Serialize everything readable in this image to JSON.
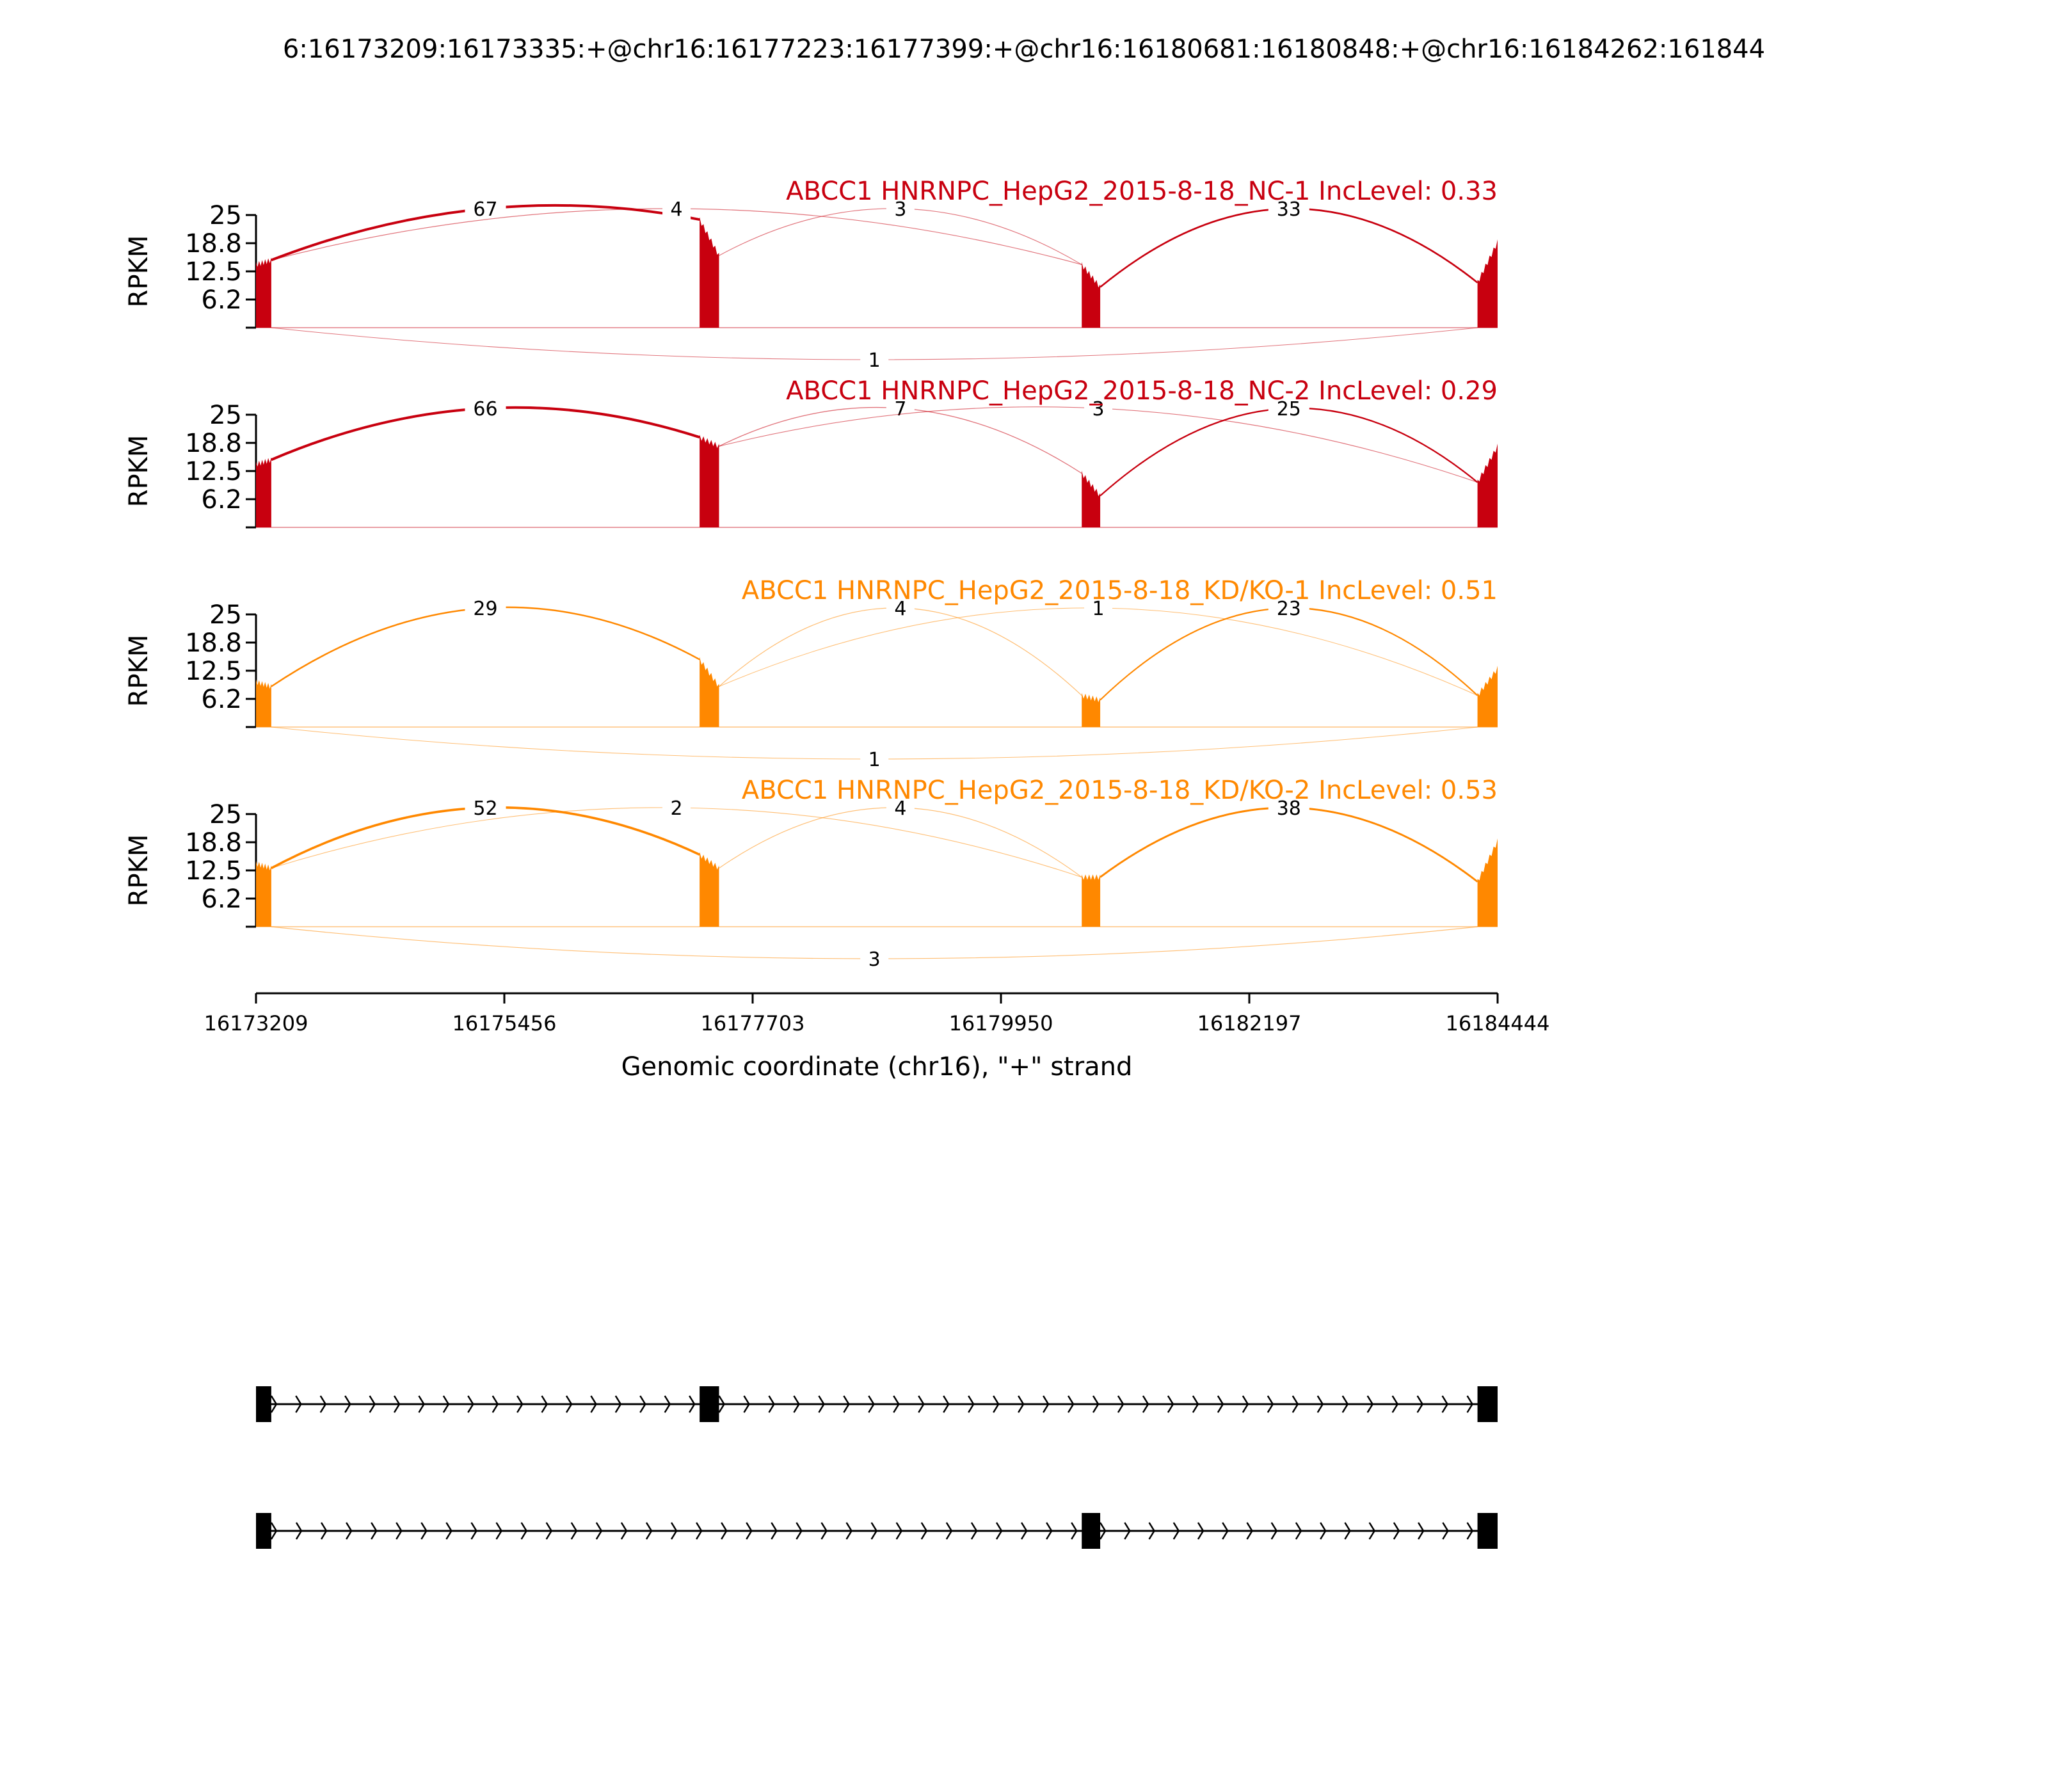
{
  "chart_data": {
    "type": "area",
    "title": "6:16173209:16173335:+@chr16:16177223:16177399:+@chr16:16180681:16180848:+@chr16:16184262:161844",
    "xlabel": "Genomic coordinate (chr16), \"+\" strand",
    "ylabel": "RPKM",
    "xlim": [
      16173209,
      16184444
    ],
    "xticks": [
      "16173209",
      "16175456",
      "16177703",
      "16179950",
      "16182197",
      "16184444"
    ],
    "ylim": [
      0,
      25
    ],
    "yticks": [
      "25",
      "18.8",
      "12.5",
      "6.2"
    ],
    "exons": [
      [
        16173209,
        16173335
      ],
      [
        16177223,
        16177399
      ],
      [
        16180681,
        16180848
      ],
      [
        16184262,
        16184444
      ]
    ],
    "colors": {
      "NC": "#c8000f",
      "KD": "#ff8800",
      "axis": "#000000"
    },
    "tracks": [
      {
        "name": "ABCC1 HNRNPC_HepG2_2015-8-18_NC-1 IncLevel: 0.33",
        "group": "NC",
        "exon_heights": [
          [
            14,
            15
          ],
          [
            24,
            16
          ],
          [
            14,
            9
          ],
          [
            10,
            19
          ]
        ],
        "junctions": [
          {
            "from": 0,
            "to": 1,
            "count": "67",
            "side": "above"
          },
          {
            "from": 1,
            "to": 2,
            "count": "3",
            "side": "above"
          },
          {
            "from": 0,
            "to": 2,
            "count": "4",
            "side": "above"
          },
          {
            "from": 2,
            "to": 3,
            "count": "33",
            "side": "above"
          },
          {
            "from": 0,
            "to": 3,
            "count": "1",
            "side": "below"
          }
        ]
      },
      {
        "name": "ABCC1 HNRNPC_HepG2_2015-8-18_NC-2 IncLevel: 0.29",
        "group": "NC",
        "exon_heights": [
          [
            14,
            15
          ],
          [
            20,
            18
          ],
          [
            12,
            7
          ],
          [
            10,
            18
          ]
        ],
        "junctions": [
          {
            "from": 0,
            "to": 1,
            "count": "66",
            "side": "above"
          },
          {
            "from": 1,
            "to": 2,
            "count": "7",
            "side": "above"
          },
          {
            "from": 1,
            "to": 3,
            "count": "3",
            "side": "above"
          },
          {
            "from": 2,
            "to": 3,
            "count": "25",
            "side": "above"
          }
        ]
      },
      {
        "name": "ABCC1 HNRNPC_HepG2_2015-8-18_KD/KO-1 IncLevel: 0.51",
        "group": "KD",
        "exon_heights": [
          [
            10,
            9
          ],
          [
            15,
            9
          ],
          [
            7,
            6
          ],
          [
            7,
            13
          ]
        ],
        "junctions": [
          {
            "from": 0,
            "to": 1,
            "count": "29",
            "side": "above"
          },
          {
            "from": 1,
            "to": 2,
            "count": "4",
            "side": "above"
          },
          {
            "from": 1,
            "to": 3,
            "count": "1",
            "side": "above"
          },
          {
            "from": 2,
            "to": 3,
            "count": "23",
            "side": "above"
          },
          {
            "from": 0,
            "to": 3,
            "count": "1",
            "side": "below"
          }
        ]
      },
      {
        "name": "ABCC1 HNRNPC_HepG2_2015-8-18_KD/KO-2 IncLevel: 0.53",
        "group": "KD",
        "exon_heights": [
          [
            14,
            13
          ],
          [
            16,
            13
          ],
          [
            11,
            11
          ],
          [
            10,
            19
          ]
        ],
        "junctions": [
          {
            "from": 0,
            "to": 1,
            "count": "52",
            "side": "above"
          },
          {
            "from": 1,
            "to": 2,
            "count": "4",
            "side": "above"
          },
          {
            "from": 0,
            "to": 2,
            "count": "2",
            "side": "above"
          },
          {
            "from": 2,
            "to": 3,
            "count": "38",
            "side": "above"
          },
          {
            "from": 0,
            "to": 3,
            "count": "3",
            "side": "below"
          }
        ]
      }
    ],
    "isoforms": [
      {
        "exons": [
          0,
          1,
          3
        ]
      },
      {
        "exons": [
          0,
          2,
          3
        ]
      }
    ]
  }
}
